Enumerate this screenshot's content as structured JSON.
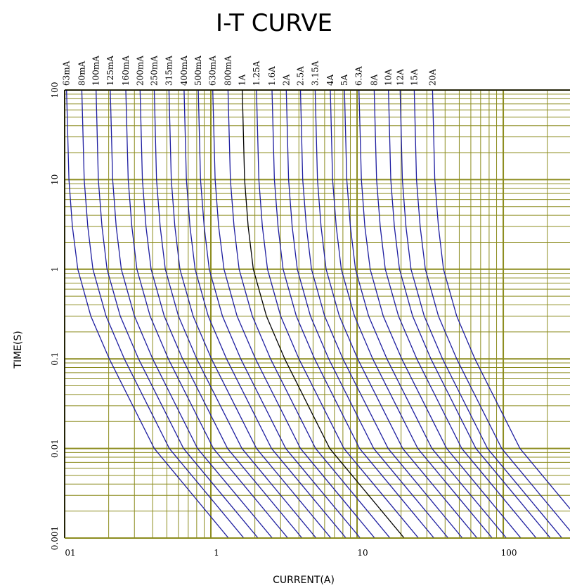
{
  "chart_data": {
    "type": "line",
    "title": "I-T CURVE",
    "x_label": "CURRENT(A)",
    "y_label": "TIME(S)",
    "log_x": true,
    "log_y": true,
    "grid": true,
    "minor_grid": true,
    "grid_color": "#8c8c1e",
    "xlim": [
      0.1,
      286
    ],
    "ylim": [
      0.001,
      100
    ],
    "xticks": [
      {
        "value": 0.1,
        "label": "01"
      },
      1,
      10,
      100
    ],
    "yticks": [
      100,
      10,
      1,
      0.1,
      0.01,
      0.001
    ],
    "y": [
      100,
      10,
      3,
      1,
      0.3,
      0.1,
      0.01,
      0.001
    ],
    "series": [
      {
        "name": "63mA",
        "color": "#1e1ea0",
        "x": [
          0.103,
          0.107,
          0.113,
          0.123,
          0.151,
          0.202,
          0.41,
          1.32
        ]
      },
      {
        "name": "80mA",
        "color": "#1e1ea0",
        "x": [
          0.131,
          0.136,
          0.144,
          0.156,
          0.192,
          0.256,
          0.52,
          1.68
        ]
      },
      {
        "name": "100mA",
        "color": "#1e1ea0",
        "x": [
          0.164,
          0.17,
          0.18,
          0.195,
          0.24,
          0.32,
          0.65,
          2.1
        ]
      },
      {
        "name": "125mA",
        "color": "#1e1ea0",
        "x": [
          0.205,
          0.213,
          0.225,
          0.244,
          0.3,
          0.4,
          0.81,
          2.63
        ]
      },
      {
        "name": "160mA",
        "color": "#1e1ea0",
        "x": [
          0.262,
          0.272,
          0.288,
          0.312,
          0.384,
          0.512,
          1.04,
          3.36
        ]
      },
      {
        "name": "200mA",
        "color": "#1e1ea0",
        "x": [
          0.328,
          0.34,
          0.36,
          0.39,
          0.48,
          0.64,
          1.3,
          4.2
        ]
      },
      {
        "name": "250mA",
        "color": "#1e1ea0",
        "x": [
          0.41,
          0.425,
          0.45,
          0.488,
          0.6,
          0.8,
          1.63,
          5.25
        ]
      },
      {
        "name": "315mA",
        "color": "#1e1ea0",
        "x": [
          0.517,
          0.536,
          0.567,
          0.614,
          0.756,
          1.01,
          2.05,
          6.62
        ]
      },
      {
        "name": "400mA",
        "color": "#1e1ea0",
        "x": [
          0.656,
          0.68,
          0.72,
          0.78,
          0.96,
          1.28,
          2.6,
          8.4
        ]
      },
      {
        "name": "500mA",
        "color": "#1e1ea0",
        "x": [
          0.82,
          0.85,
          0.9,
          0.975,
          1.2,
          1.6,
          3.25,
          10.5
        ]
      },
      {
        "name": "630mA",
        "color": "#1e1ea0",
        "x": [
          1.03,
          1.07,
          1.13,
          1.23,
          1.51,
          2.02,
          4.1,
          13.2
        ]
      },
      {
        "name": "800mA",
        "color": "#1e1ea0",
        "x": [
          1.31,
          1.36,
          1.44,
          1.56,
          1.92,
          2.56,
          5.2,
          16.8
        ]
      },
      {
        "name": "1A",
        "color": "#000000",
        "x": [
          1.64,
          1.7,
          1.8,
          1.95,
          2.4,
          3.2,
          6.5,
          21
        ]
      },
      {
        "name": "1.25A",
        "color": "#1e1ea0",
        "x": [
          2.05,
          2.13,
          2.25,
          2.44,
          3,
          4,
          8.13,
          26.3
        ]
      },
      {
        "name": "1.6A",
        "color": "#1e1ea0",
        "x": [
          2.62,
          2.72,
          2.88,
          3.12,
          3.84,
          5.12,
          10.4,
          33.6
        ]
      },
      {
        "name": "2A",
        "color": "#1e1ea0",
        "x": [
          3.28,
          3.4,
          3.6,
          3.9,
          4.8,
          6.4,
          13,
          42
        ]
      },
      {
        "name": "2.5A",
        "color": "#1e1ea0",
        "x": [
          4.1,
          4.25,
          4.5,
          4.88,
          6,
          8,
          16.3,
          52.5
        ]
      },
      {
        "name": "3.15A",
        "color": "#1e1ea0",
        "x": [
          5.17,
          5.36,
          5.67,
          6.14,
          7.56,
          10.1,
          20.5,
          66.2
        ]
      },
      {
        "name": "4A",
        "color": "#1e1ea0",
        "x": [
          6.56,
          6.8,
          7.2,
          7.8,
          9.6,
          12.8,
          26,
          84
        ]
      },
      {
        "name": "5A",
        "color": "#1e1ea0",
        "x": [
          8.2,
          8.5,
          9,
          9.75,
          12,
          16,
          32.5,
          105
        ]
      },
      {
        "name": "6.3A",
        "color": "#1e1ea0",
        "x": [
          10.3,
          10.7,
          11.3,
          12.3,
          15.1,
          20.2,
          41,
          132
        ]
      },
      {
        "name": "8A",
        "color": "#1e1ea0",
        "x": [
          13.1,
          13.6,
          14.4,
          15.6,
          19.2,
          25.6,
          52,
          168
        ]
      },
      {
        "name": "10A",
        "color": "#1e1ea0",
        "x": [
          16.4,
          17,
          18,
          19.5,
          24,
          32,
          65,
          210
        ]
      },
      {
        "name": "12A",
        "color": "#1e1ea0",
        "x": [
          19.7,
          20.4,
          21.6,
          23.4,
          28.8,
          38.4,
          78,
          252
        ]
      },
      {
        "name": "15A",
        "color": "#1e1ea0",
        "x": [
          24.6,
          25.5,
          27,
          29.3,
          36,
          48,
          97.5,
          315
        ]
      },
      {
        "name": "20A",
        "color": "#1e1ea0",
        "x": [
          32.8,
          34,
          36,
          39,
          48,
          64,
          130,
          420
        ]
      }
    ]
  }
}
